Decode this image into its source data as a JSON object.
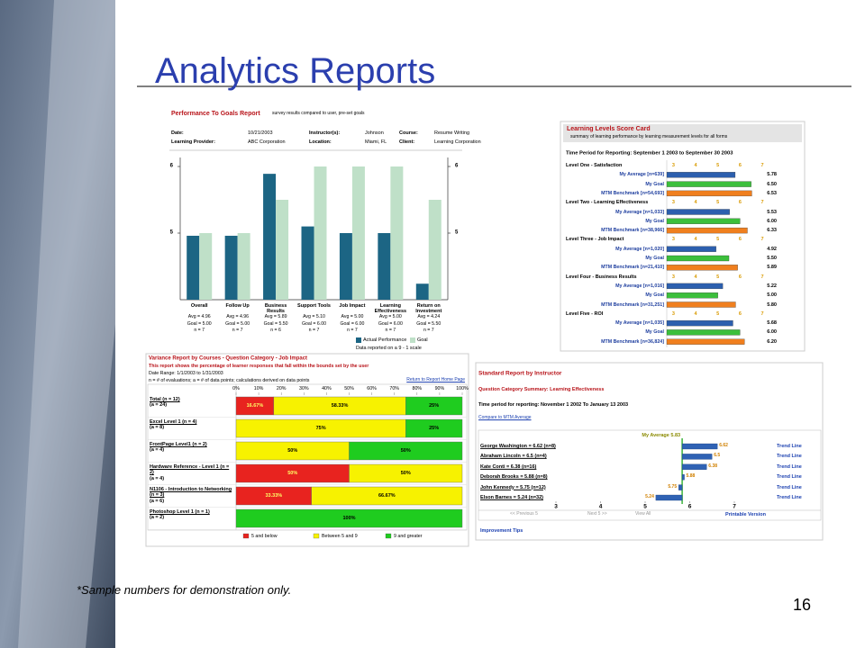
{
  "slide": {
    "title": "Analytics Reports",
    "footnote": "*Sample numbers for demonstration only.",
    "page_number": "16"
  },
  "chart_data": [
    {
      "type": "bar",
      "title": "Performance To Goals Report",
      "subtitle": "survey results compared to user, pre-set goals",
      "fields": [
        {
          "label": "Date:",
          "value": "10/21/2003"
        },
        {
          "label": "Instructor(s):",
          "value": "Johnson"
        },
        {
          "label": "Course:",
          "value": "Resume Writing"
        },
        {
          "label": "Learning Provider:",
          "value": "ABC Corporation"
        },
        {
          "label": "Location:",
          "value": "Miami, FL"
        },
        {
          "label": "Client:",
          "value": "Learning Corporation"
        }
      ],
      "categories": [
        "Overall",
        "Follow Up",
        "Business Results",
        "Support Tools",
        "Job Impact",
        "Learning Effectiveness",
        "Return on Investment"
      ],
      "series": [
        {
          "name": "Actual Performance",
          "color": "#1c6584",
          "values": [
            4.96,
            4.96,
            5.89,
            5.1,
            5.0,
            5.0,
            4.24
          ]
        },
        {
          "name": "Goal",
          "color": "#bfe0c8",
          "values": [
            5.0,
            5.0,
            5.5,
            6.0,
            6.0,
            6.0,
            5.5
          ]
        }
      ],
      "stats": [
        [
          "Avg = 4.96",
          "Goal = 5.00",
          "n = 7"
        ],
        [
          "Avg = 4.96",
          "Goal = 5.00",
          "n = 7"
        ],
        [
          "Avg = 5.89",
          "Goal = 5.50",
          "n = 6"
        ],
        [
          "Avg = 5.10",
          "Goal = 6.00",
          "n = 7"
        ],
        [
          "Avg = 5.00",
          "Goal = 6.00",
          "n = 7"
        ],
        [
          "Avg = 5.00",
          "Goal = 6.00",
          "n = 7"
        ],
        [
          "Avg = 4.24",
          "Goal = 5.50",
          "n = 7"
        ]
      ],
      "ylim": [
        4,
        6
      ],
      "yticks": [
        5,
        6
      ],
      "note": "Data reported on a 9 - 1 scale"
    },
    {
      "type": "hbar",
      "title": "Learning Levels Score Card",
      "subtitle": "summary of learning performance by learning measurement levels for all forms",
      "period": "Time Period for Reporting: September 1 2003 to September 30 2003",
      "colors": [
        "#2c5fae",
        "#3cbf3c",
        "#f07f1e"
      ],
      "xlim": [
        2.7,
        7
      ],
      "xticks": [
        3,
        4,
        5,
        6,
        7
      ],
      "groups": [
        {
          "name": "Level One - Satisfaction",
          "rows": [
            {
              "label": "My Average [n=639]",
              "value": 5.78,
              "value_label": "5.78"
            },
            {
              "label": "My Goal",
              "value": 6.5,
              "value_label": "6.50"
            },
            {
              "label": "MTM Benchmark [n=54,693]",
              "value": 6.53,
              "value_label": "6.53"
            }
          ]
        },
        {
          "name": "Level Two - Learning Effectiveness",
          "rows": [
            {
              "label": "My Average [n=1,033]",
              "value": 5.53,
              "value_label": "5.53"
            },
            {
              "label": "My Goal",
              "value": 6.0,
              "value_label": "6.00"
            },
            {
              "label": "MTM Benchmark [n=38,966]",
              "value": 6.33,
              "value_label": "6.33"
            }
          ]
        },
        {
          "name": "Level Three - Job Impact",
          "rows": [
            {
              "label": "My Average [n=1,020]",
              "value": 4.92,
              "value_label": "4.92"
            },
            {
              "label": "My Goal",
              "value": 5.5,
              "value_label": "5.50"
            },
            {
              "label": "MTM Benchmark [n=21,410]",
              "value": 5.89,
              "value_label": "5.89"
            }
          ]
        },
        {
          "name": "Level Four - Business Results",
          "rows": [
            {
              "label": "My Average [n=1,016]",
              "value": 5.22,
              "value_label": "5.22"
            },
            {
              "label": "My Goal",
              "value": 5.0,
              "value_label": "5.00"
            },
            {
              "label": "MTM Benchmark [n=31,251]",
              "value": 5.8,
              "value_label": "5.80"
            }
          ]
        },
        {
          "name": "Level Five - ROI",
          "rows": [
            {
              "label": "My Average [n=1,035]",
              "value": 5.68,
              "value_label": "5.68"
            },
            {
              "label": "My Goal",
              "value": 6.0,
              "value_label": "6.00"
            },
            {
              "label": "MTM Benchmark [n=36,824]",
              "value": 6.2,
              "value_label": "6.20"
            }
          ]
        }
      ]
    },
    {
      "type": "stacked",
      "title": "Variance Report by Courses - Question Category - Job Impact",
      "subtitle": "This report shows the percentage of learner responses that fall within the bounds set by the user",
      "date_range": "Date Range: 1/1/2003 to 1/31/2003",
      "legend_note": "n = # of evaluations; a = # of data points; calculations derived on data points",
      "link": "Return to Report Home Page",
      "categories": [
        "Total (n = 12)",
        "Excel Level 1 (n = 4)",
        "FrontPage Level1 (n = 2)",
        "Hardware Reference - Level 1 (n = 2)",
        "N1106 - Introduction to Networking (n = 3)",
        "Photoshop Level 1 (n = 1)"
      ],
      "category_notes": [
        "(a = 24)",
        "(a = 8)",
        "(a = 4)",
        "(a = 4)",
        "(a = 6)",
        "(a = 2)"
      ],
      "series": [
        {
          "name": "5 and below",
          "color": "#e8231f",
          "label_color": "#ffff66",
          "values": [
            16.67,
            0,
            0,
            50,
            33.33,
            0
          ],
          "value_labels": [
            "16.67%",
            null,
            null,
            "50%",
            "33.33%",
            null
          ]
        },
        {
          "name": "Between 5 and 9",
          "color": "#f7f200",
          "label_color": "#000000",
          "values": [
            58.33,
            75,
            50,
            50,
            66.67,
            0
          ],
          "value_labels": [
            "58.33%",
            "75%",
            "50%",
            "50%",
            "66.67%",
            null
          ]
        },
        {
          "name": "9 and greater",
          "color": "#1fcc1f",
          "label_color": "#000000",
          "values": [
            25,
            25,
            50,
            0,
            0,
            100
          ],
          "value_labels": [
            "25%",
            "25%",
            "50%",
            null,
            null,
            "100%"
          ]
        }
      ],
      "xlim": [
        0,
        100
      ],
      "xticks": [
        {
          "value": 0,
          "label": "0%"
        },
        {
          "value": 10,
          "label": "10%"
        },
        {
          "value": 20,
          "label": "20%"
        },
        {
          "value": 30,
          "label": "30%"
        },
        {
          "value": 40,
          "label": "40%"
        },
        {
          "value": 50,
          "label": "50%"
        },
        {
          "value": 60,
          "label": "60%"
        },
        {
          "value": 70,
          "label": "70%"
        },
        {
          "value": 80,
          "label": "80%"
        },
        {
          "value": 90,
          "label": "90%"
        },
        {
          "value": 100,
          "label": "100%"
        }
      ]
    },
    {
      "type": "diverging",
      "title": "Standard Report by Instructor",
      "subtitle": "Question Category Summary: Learning Effectiveness",
      "period": "Time period for reporting: November 1 2002 To January 13 2003",
      "compare_link": "Compare to MTM Average",
      "categories": [
        "George Washington = 6.62 (n=8)",
        "Abraham Lincoln = 6.5 (n=4)",
        "Kate Conti = 6.38 (n=16)",
        "Deborah Brooks = 5.88 (n=8)",
        "John Kennedy = 5.75 (n=12)",
        "Elson Barnes = 5.24 (n=32)"
      ],
      "values": [
        6.62,
        6.5,
        6.38,
        5.88,
        5.75,
        5.24
      ],
      "color": "#2f62b4",
      "reference": 5.83,
      "reference_label": "My Average 5.83",
      "row_link": "Trend Line",
      "xlim": [
        3,
        7
      ],
      "xticks": [
        3,
        4,
        5,
        6,
        7
      ],
      "nav": [
        "<< Previous 5",
        "Next 5 >>",
        "View All"
      ],
      "print_link": "Printable Version",
      "tips_link": "Improvement Tips"
    }
  ]
}
